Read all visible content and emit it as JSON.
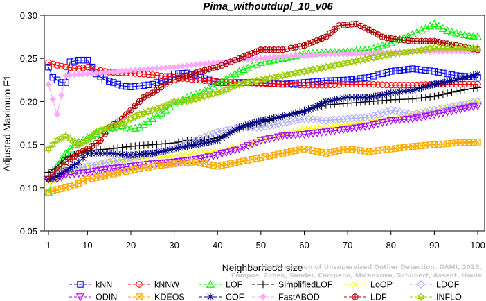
{
  "chart_data": {
    "type": "line",
    "title": "Pima_withoutdupl_10_v06",
    "xlabel": "Neighborhood size",
    "ylabel": "Adjusted Maximum F1",
    "xlim": [
      1,
      100
    ],
    "ylim": [
      0.05,
      0.3
    ],
    "xticks": [
      "1",
      "10",
      "20",
      "30",
      "40",
      "50",
      "60",
      "70",
      "80",
      "90",
      "100"
    ],
    "yticks": [
      "0.05",
      "0.10",
      "0.15",
      "0.20",
      "0.25",
      "0.30"
    ],
    "grid": false,
    "legend_placement": "bottom",
    "watermark": [
      "Campos, Zimek, Sander, Campello, Micenkova, Schubert, Assent, Houle",
      "On the Evaluation of Unsupervised Outlier Detection. DAMI, 2015."
    ],
    "series": [
      {
        "name": "kNN",
        "color": "#0000ff",
        "marker": "square",
        "points": [
          [
            1,
            0.24
          ],
          [
            2,
            0.228
          ],
          [
            3,
            0.225
          ],
          [
            4,
            0.222
          ],
          [
            5,
            0.222
          ],
          [
            6,
            0.246
          ],
          [
            8,
            0.248
          ],
          [
            10,
            0.248
          ],
          [
            12,
            0.232
          ],
          [
            14,
            0.225
          ],
          [
            16,
            0.222
          ],
          [
            18,
            0.218
          ],
          [
            20,
            0.217
          ],
          [
            22,
            0.218
          ],
          [
            25,
            0.22
          ],
          [
            28,
            0.226
          ],
          [
            30,
            0.232
          ],
          [
            33,
            0.233
          ],
          [
            36,
            0.228
          ],
          [
            40,
            0.222
          ],
          [
            45,
            0.222
          ],
          [
            50,
            0.222
          ],
          [
            55,
            0.22
          ],
          [
            60,
            0.222
          ],
          [
            65,
            0.224
          ],
          [
            70,
            0.225
          ],
          [
            75,
            0.228
          ],
          [
            80,
            0.235
          ],
          [
            85,
            0.238
          ],
          [
            90,
            0.235
          ],
          [
            95,
            0.23
          ],
          [
            100,
            0.228
          ]
        ]
      },
      {
        "name": "kNNW",
        "color": "#ff0000",
        "marker": "circle",
        "points": [
          [
            1,
            0.245
          ],
          [
            3,
            0.242
          ],
          [
            5,
            0.24
          ],
          [
            8,
            0.238
          ],
          [
            10,
            0.24
          ],
          [
            12,
            0.237
          ],
          [
            15,
            0.234
          ],
          [
            20,
            0.233
          ],
          [
            25,
            0.231
          ],
          [
            30,
            0.228
          ],
          [
            35,
            0.225
          ],
          [
            40,
            0.223
          ],
          [
            45,
            0.222
          ],
          [
            50,
            0.221
          ],
          [
            55,
            0.22
          ],
          [
            60,
            0.219
          ],
          [
            65,
            0.219
          ],
          [
            70,
            0.22
          ],
          [
            75,
            0.22
          ],
          [
            80,
            0.219
          ],
          [
            85,
            0.219
          ],
          [
            90,
            0.22
          ],
          [
            95,
            0.22
          ],
          [
            100,
            0.22
          ]
        ]
      },
      {
        "name": "LOF",
        "color": "#00ee00",
        "marker": "triangle",
        "points": [
          [
            1,
            0.095
          ],
          [
            3,
            0.125
          ],
          [
            5,
            0.14
          ],
          [
            7,
            0.15
          ],
          [
            10,
            0.158
          ],
          [
            12,
            0.163
          ],
          [
            15,
            0.168
          ],
          [
            18,
            0.172
          ],
          [
            20,
            0.168
          ],
          [
            22,
            0.17
          ],
          [
            25,
            0.18
          ],
          [
            28,
            0.19
          ],
          [
            30,
            0.197
          ],
          [
            33,
            0.205
          ],
          [
            36,
            0.21
          ],
          [
            40,
            0.22
          ],
          [
            45,
            0.235
          ],
          [
            50,
            0.245
          ],
          [
            55,
            0.25
          ],
          [
            60,
            0.255
          ],
          [
            65,
            0.257
          ],
          [
            70,
            0.258
          ],
          [
            75,
            0.26
          ],
          [
            80,
            0.268
          ],
          [
            85,
            0.278
          ],
          [
            88,
            0.285
          ],
          [
            90,
            0.29
          ],
          [
            93,
            0.282
          ],
          [
            96,
            0.278
          ],
          [
            100,
            0.275
          ]
        ]
      },
      {
        "name": "SimplifiedLOF",
        "color": "#000000",
        "marker": "plus",
        "points": [
          [
            1,
            0.118
          ],
          [
            3,
            0.125
          ],
          [
            5,
            0.135
          ],
          [
            8,
            0.14
          ],
          [
            10,
            0.143
          ],
          [
            15,
            0.145
          ],
          [
            20,
            0.148
          ],
          [
            25,
            0.15
          ],
          [
            30,
            0.152
          ],
          [
            33,
            0.155
          ],
          [
            36,
            0.155
          ],
          [
            40,
            0.158
          ],
          [
            45,
            0.168
          ],
          [
            50,
            0.175
          ],
          [
            55,
            0.183
          ],
          [
            60,
            0.19
          ],
          [
            65,
            0.196
          ],
          [
            70,
            0.198
          ],
          [
            75,
            0.2
          ],
          [
            80,
            0.202
          ],
          [
            85,
            0.203
          ],
          [
            90,
            0.206
          ],
          [
            95,
            0.212
          ],
          [
            100,
            0.216
          ]
        ]
      },
      {
        "name": "LoOP",
        "color": "#ffff00",
        "marker": "x",
        "points": [
          [
            1,
            0.105
          ],
          [
            5,
            0.115
          ],
          [
            10,
            0.125
          ],
          [
            15,
            0.13
          ],
          [
            20,
            0.133
          ],
          [
            25,
            0.135
          ],
          [
            30,
            0.137
          ],
          [
            35,
            0.14
          ],
          [
            40,
            0.142
          ],
          [
            45,
            0.148
          ],
          [
            50,
            0.155
          ],
          [
            55,
            0.162
          ],
          [
            60,
            0.168
          ],
          [
            65,
            0.17
          ],
          [
            70,
            0.173
          ],
          [
            75,
            0.178
          ],
          [
            80,
            0.18
          ],
          [
            85,
            0.185
          ],
          [
            90,
            0.19
          ],
          [
            95,
            0.195
          ],
          [
            100,
            0.2
          ]
        ]
      },
      {
        "name": "LDOF",
        "color": "#aaaaff",
        "marker": "diamond",
        "points": [
          [
            1,
            0.11
          ],
          [
            5,
            0.12
          ],
          [
            10,
            0.125
          ],
          [
            15,
            0.13
          ],
          [
            20,
            0.135
          ],
          [
            25,
            0.14
          ],
          [
            30,
            0.145
          ],
          [
            35,
            0.155
          ],
          [
            40,
            0.165
          ],
          [
            45,
            0.17
          ],
          [
            50,
            0.17
          ],
          [
            55,
            0.175
          ],
          [
            60,
            0.18
          ],
          [
            65,
            0.178
          ],
          [
            70,
            0.18
          ],
          [
            75,
            0.182
          ],
          [
            80,
            0.19
          ],
          [
            85,
            0.185
          ],
          [
            90,
            0.19
          ],
          [
            95,
            0.195
          ],
          [
            100,
            0.2
          ]
        ]
      },
      {
        "name": "ODIN",
        "color": "#aa00ff",
        "marker": "triangle-down",
        "points": [
          [
            1,
            0.11
          ],
          [
            3,
            0.11
          ],
          [
            5,
            0.115
          ],
          [
            10,
            0.118
          ],
          [
            15,
            0.122
          ],
          [
            20,
            0.125
          ],
          [
            25,
            0.128
          ],
          [
            30,
            0.13
          ],
          [
            35,
            0.133
          ],
          [
            40,
            0.138
          ],
          [
            45,
            0.145
          ],
          [
            50,
            0.155
          ],
          [
            55,
            0.16
          ],
          [
            60,
            0.162
          ],
          [
            65,
            0.165
          ],
          [
            70,
            0.168
          ],
          [
            75,
            0.172
          ],
          [
            80,
            0.178
          ],
          [
            85,
            0.18
          ],
          [
            90,
            0.185
          ],
          [
            95,
            0.19
          ],
          [
            100,
            0.195
          ]
        ]
      },
      {
        "name": "KDEOS",
        "color": "#ffaa00",
        "marker": "square-x",
        "points": [
          [
            1,
            0.095
          ],
          [
            3,
            0.098
          ],
          [
            5,
            0.1
          ],
          [
            8,
            0.105
          ],
          [
            10,
            0.11
          ],
          [
            15,
            0.115
          ],
          [
            20,
            0.12
          ],
          [
            25,
            0.125
          ],
          [
            30,
            0.128
          ],
          [
            35,
            0.13
          ],
          [
            40,
            0.125
          ],
          [
            45,
            0.13
          ],
          [
            50,
            0.135
          ],
          [
            55,
            0.14
          ],
          [
            60,
            0.145
          ],
          [
            65,
            0.14
          ],
          [
            70,
            0.145
          ],
          [
            75,
            0.142
          ],
          [
            80,
            0.145
          ],
          [
            85,
            0.148
          ],
          [
            90,
            0.15
          ],
          [
            95,
            0.152
          ],
          [
            100,
            0.153
          ]
        ]
      },
      {
        "name": "COF",
        "color": "#000080",
        "marker": "star",
        "points": [
          [
            1,
            0.11
          ],
          [
            3,
            0.113
          ],
          [
            5,
            0.12
          ],
          [
            8,
            0.13
          ],
          [
            10,
            0.14
          ],
          [
            15,
            0.14
          ],
          [
            20,
            0.138
          ],
          [
            25,
            0.14
          ],
          [
            30,
            0.145
          ],
          [
            35,
            0.15
          ],
          [
            40,
            0.155
          ],
          [
            45,
            0.17
          ],
          [
            50,
            0.178
          ],
          [
            55,
            0.183
          ],
          [
            60,
            0.188
          ],
          [
            65,
            0.2
          ],
          [
            70,
            0.205
          ],
          [
            75,
            0.205
          ],
          [
            80,
            0.21
          ],
          [
            85,
            0.213
          ],
          [
            90,
            0.22
          ],
          [
            95,
            0.225
          ],
          [
            100,
            0.232
          ]
        ]
      },
      {
        "name": "FastABOD",
        "color": "#ffaaff",
        "marker": "diamond-filled",
        "points": [
          [
            1,
            0.22
          ],
          [
            3,
            0.185
          ],
          [
            5,
            0.23
          ],
          [
            8,
            0.232
          ],
          [
            10,
            0.232
          ],
          [
            15,
            0.234
          ],
          [
            20,
            0.236
          ],
          [
            25,
            0.238
          ],
          [
            30,
            0.24
          ],
          [
            35,
            0.243
          ],
          [
            40,
            0.245
          ],
          [
            45,
            0.248
          ],
          [
            50,
            0.25
          ],
          [
            55,
            0.252
          ],
          [
            60,
            0.253
          ],
          [
            65,
            0.255
          ],
          [
            70,
            0.255
          ],
          [
            75,
            0.256
          ],
          [
            80,
            0.257
          ],
          [
            85,
            0.258
          ],
          [
            90,
            0.258
          ],
          [
            95,
            0.258
          ],
          [
            100,
            0.258
          ]
        ]
      },
      {
        "name": "LDF",
        "color": "#aa0000",
        "marker": "circle-plus",
        "points": [
          [
            1,
            0.11
          ],
          [
            3,
            0.12
          ],
          [
            5,
            0.13
          ],
          [
            8,
            0.14
          ],
          [
            10,
            0.145
          ],
          [
            13,
            0.155
          ],
          [
            15,
            0.17
          ],
          [
            18,
            0.18
          ],
          [
            20,
            0.19
          ],
          [
            23,
            0.205
          ],
          [
            25,
            0.21
          ],
          [
            28,
            0.22
          ],
          [
            30,
            0.225
          ],
          [
            33,
            0.23
          ],
          [
            36,
            0.235
          ],
          [
            40,
            0.24
          ],
          [
            45,
            0.25
          ],
          [
            50,
            0.26
          ],
          [
            55,
            0.26
          ],
          [
            60,
            0.265
          ],
          [
            65,
            0.275
          ],
          [
            68,
            0.288
          ],
          [
            72,
            0.29
          ],
          [
            75,
            0.283
          ],
          [
            78,
            0.275
          ],
          [
            80,
            0.273
          ],
          [
            85,
            0.27
          ],
          [
            90,
            0.27
          ],
          [
            95,
            0.265
          ],
          [
            100,
            0.26
          ]
        ]
      },
      {
        "name": "INFLO",
        "color": "#99cc00",
        "marker": "star6",
        "points": [
          [
            1,
            0.145
          ],
          [
            3,
            0.155
          ],
          [
            5,
            0.16
          ],
          [
            8,
            0.15
          ],
          [
            10,
            0.155
          ],
          [
            12,
            0.165
          ],
          [
            15,
            0.17
          ],
          [
            18,
            0.175
          ],
          [
            20,
            0.18
          ],
          [
            22,
            0.185
          ],
          [
            25,
            0.19
          ],
          [
            28,
            0.195
          ],
          [
            30,
            0.2
          ],
          [
            33,
            0.2
          ],
          [
            36,
            0.205
          ],
          [
            40,
            0.21
          ],
          [
            45,
            0.22
          ],
          [
            50,
            0.225
          ],
          [
            55,
            0.23
          ],
          [
            60,
            0.235
          ],
          [
            65,
            0.24
          ],
          [
            70,
            0.245
          ],
          [
            75,
            0.25
          ],
          [
            80,
            0.255
          ],
          [
            85,
            0.258
          ],
          [
            90,
            0.262
          ],
          [
            95,
            0.262
          ],
          [
            100,
            0.262
          ]
        ]
      }
    ]
  }
}
